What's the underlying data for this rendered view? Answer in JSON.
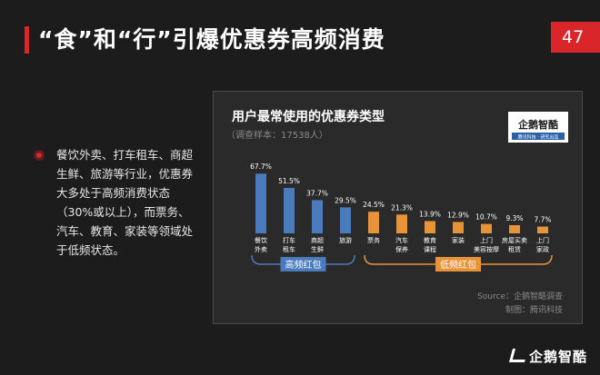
{
  "page": {
    "title": "“食”和“行”引爆优惠券高频消费",
    "page_number": "47",
    "description": "餐饮外卖、打车租车、商超生鲜、旅游等行业，优惠券大多处于高频消费状态（30%或以上），而票务、汽车、教育、家装等领域处于低频状态。",
    "footer_logo": "企鹅智酷"
  },
  "colors": {
    "accent": "#d9262b",
    "high_freq": "#4a7bbd",
    "low_freq": "#e8923a"
  },
  "chart_data": {
    "type": "bar",
    "title": "用户最常使用的优惠券类型",
    "subtitle": "（调查样本：17538人）",
    "categories": [
      [
        "餐饮",
        "外卖"
      ],
      [
        "打车",
        "租车"
      ],
      [
        "商超",
        "生鲜"
      ],
      [
        "旅游"
      ],
      [
        "票务"
      ],
      [
        "汽车",
        "保养"
      ],
      [
        "教育",
        "课程"
      ],
      [
        "家装"
      ],
      [
        "上门",
        "美容按摩"
      ],
      [
        "房屋买卖",
        "租赁"
      ],
      [
        "上门",
        "家政"
      ]
    ],
    "values": [
      67.7,
      51.5,
      37.7,
      29.5,
      24.5,
      21.3,
      13.9,
      12.9,
      10.7,
      9.3,
      7.7
    ],
    "value_labels": [
      "67.7%",
      "51.5%",
      "37.7%",
      "29.5%",
      "24.5%",
      "21.3%",
      "13.9%",
      "12.9%",
      "10.7%",
      "9.3%",
      "7.7%"
    ],
    "groups": [
      {
        "name": "高频红包",
        "start": 0,
        "end": 3,
        "color": "#4a7bbd"
      },
      {
        "name": "低频红包",
        "start": 4,
        "end": 10,
        "color": "#e8923a"
      }
    ],
    "ylim": [
      0,
      70
    ],
    "logo": {
      "name": "企鹅智酷",
      "tagline": "腾讯科技 · 研究出品"
    },
    "source": "Source：企鹅智酷调查",
    "credit": "制图：腾讯科技"
  }
}
